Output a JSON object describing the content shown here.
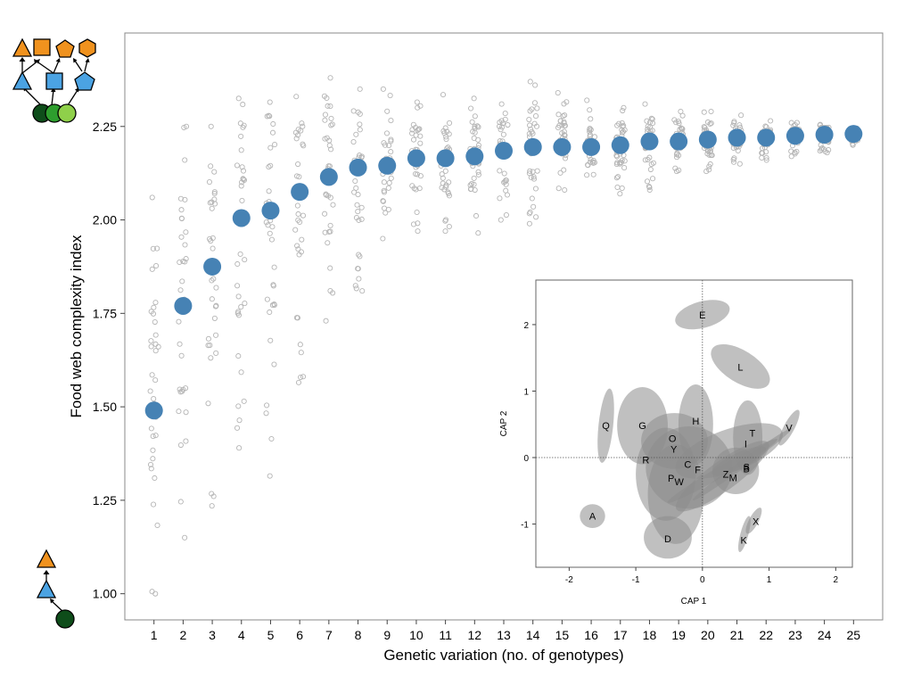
{
  "chart_data": [
    {
      "type": "scatter",
      "title": "",
      "xlabel": "Genetic variation (no. of genotypes)",
      "ylabel": "Food web complexity index",
      "xlim": [
        0,
        26
      ],
      "ylim": [
        0.93,
        2.5
      ],
      "x_ticks": [
        "1",
        "2",
        "3",
        "4",
        "5",
        "6",
        "7",
        "8",
        "9",
        "10",
        "11",
        "12",
        "13",
        "14",
        "15",
        "16",
        "17",
        "18",
        "19",
        "20",
        "21",
        "22",
        "23",
        "24",
        "25"
      ],
      "y_ticks": [
        "1.00",
        "1.25",
        "1.50",
        "1.75",
        "2.00",
        "2.25"
      ],
      "grid": false,
      "series": [
        {
          "x": [
            1,
            2,
            3,
            4,
            5,
            6,
            7,
            8,
            9,
            10,
            11,
            12,
            13,
            14,
            15,
            16,
            17,
            18,
            19,
            20,
            21,
            22,
            23,
            24,
            25
          ],
          "y": [
            1.49,
            1.77,
            1.875,
            2.005,
            2.025,
            2.075,
            2.115,
            2.14,
            2.145,
            2.165,
            2.165,
            2.17,
            2.185,
            2.195,
            2.195,
            2.195,
            2.2,
            2.21,
            2.21,
            2.215,
            2.22,
            2.22,
            2.225,
            2.228,
            2.23
          ],
          "color": "#4682b4"
        }
      ],
      "replicates": {
        "color": "#b5b5b5",
        "min": [
          1.0,
          1.15,
          1.235,
          1.39,
          1.315,
          1.565,
          1.73,
          1.81,
          1.95,
          1.97,
          1.97,
          1.965,
          2.0,
          1.99,
          2.08,
          2.12,
          2.07,
          2.08,
          2.13,
          2.13,
          2.15,
          2.16,
          2.17,
          2.18,
          2.2
        ],
        "max": [
          2.06,
          2.25,
          2.25,
          2.325,
          2.315,
          2.33,
          2.38,
          2.35,
          2.35,
          2.315,
          2.335,
          2.325,
          2.31,
          2.37,
          2.34,
          2.32,
          2.3,
          2.31,
          2.29,
          2.29,
          2.28,
          2.265,
          2.26,
          2.255,
          2.245
        ]
      }
    },
    {
      "type": "scatter",
      "title": "",
      "xlabel": "CAP 1",
      "ylabel": "CAP 2",
      "xlim": [
        -2.5,
        2.25
      ],
      "ylim": [
        -1.65,
        2.67
      ],
      "x_ticks": [
        "-2",
        "-1",
        "0",
        "1",
        "2"
      ],
      "y_ticks": [
        "-1",
        "0",
        "1",
        "2"
      ],
      "grid": false,
      "reference_lines": [
        0,
        0
      ],
      "ellipse_color": "#8c8c8c",
      "labels": [
        {
          "label": "E",
          "x": 0.0,
          "y": 2.15
        },
        {
          "label": "L",
          "x": 0.57,
          "y": 1.36
        },
        {
          "label": "Q",
          "x": -1.45,
          "y": 0.48
        },
        {
          "label": "G",
          "x": -0.9,
          "y": 0.48
        },
        {
          "label": "H",
          "x": -0.1,
          "y": 0.55
        },
        {
          "label": "V",
          "x": 1.3,
          "y": 0.45
        },
        {
          "label": "T",
          "x": 0.75,
          "y": 0.37
        },
        {
          "label": "O",
          "x": -0.45,
          "y": 0.29
        },
        {
          "label": "I",
          "x": 0.65,
          "y": 0.21
        },
        {
          "label": "Y",
          "x": -0.43,
          "y": 0.13
        },
        {
          "label": "R",
          "x": -0.85,
          "y": -0.03
        },
        {
          "label": "C",
          "x": -0.22,
          "y": -0.1
        },
        {
          "label": "F",
          "x": -0.07,
          "y": -0.18
        },
        {
          "label": "S",
          "x": 0.66,
          "y": -0.14
        },
        {
          "label": "B",
          "x": 0.66,
          "y": -0.17
        },
        {
          "label": "Z",
          "x": 0.35,
          "y": -0.25
        },
        {
          "label": "M",
          "x": 0.46,
          "y": -0.3
        },
        {
          "label": "P",
          "x": -0.47,
          "y": -0.31
        },
        {
          "label": "W",
          "x": -0.35,
          "y": -0.36
        },
        {
          "label": "A",
          "x": -1.65,
          "y": -0.88
        },
        {
          "label": "X",
          "x": 0.8,
          "y": -0.96
        },
        {
          "label": "D",
          "x": -0.52,
          "y": -1.22
        },
        {
          "label": "K",
          "x": 0.62,
          "y": -1.24
        }
      ],
      "ellipses": [
        {
          "cx": 0.0,
          "cy": 2.15,
          "rx": 0.42,
          "ry": 0.2,
          "angle": -15
        },
        {
          "cx": 0.57,
          "cy": 1.37,
          "rx": 0.5,
          "ry": 0.24,
          "angle": 32
        },
        {
          "cx": -1.45,
          "cy": 0.48,
          "rx": 0.56,
          "ry": 0.11,
          "angle": -84
        },
        {
          "cx": -0.9,
          "cy": 0.48,
          "rx": 0.38,
          "ry": 0.58,
          "angle": 0
        },
        {
          "cx": -0.1,
          "cy": 0.5,
          "rx": 0.26,
          "ry": 0.6,
          "angle": 0
        },
        {
          "cx": 1.3,
          "cy": 0.45,
          "rx": 0.3,
          "ry": 0.08,
          "angle": -62
        },
        {
          "cx": 0.68,
          "cy": 0.3,
          "rx": 0.22,
          "ry": 0.56,
          "angle": 0
        },
        {
          "cx": -0.42,
          "cy": 0.25,
          "rx": 0.5,
          "ry": 0.42,
          "angle": 0
        },
        {
          "cx": -0.2,
          "cy": -0.15,
          "rx": 0.65,
          "ry": 0.62,
          "angle": 0
        },
        {
          "cx": 0.4,
          "cy": 0.1,
          "rx": 0.85,
          "ry": 0.32,
          "angle": -20
        },
        {
          "cx": -0.55,
          "cy": -0.25,
          "rx": 0.45,
          "ry": 0.7,
          "angle": 0
        },
        {
          "cx": -0.4,
          "cy": -0.55,
          "rx": 0.42,
          "ry": 0.75,
          "angle": 0
        },
        {
          "cx": 0.5,
          "cy": -0.2,
          "rx": 0.35,
          "ry": 0.35,
          "angle": 0
        },
        {
          "cx": 0.6,
          "cy": -0.1,
          "rx": 0.92,
          "ry": 0.06,
          "angle": -36
        },
        {
          "cx": 0.3,
          "cy": -0.2,
          "rx": 0.95,
          "ry": 0.08,
          "angle": -30
        },
        {
          "cx": 0.3,
          "cy": -0.28,
          "rx": 0.85,
          "ry": 0.22,
          "angle": -36
        },
        {
          "cx": 0.55,
          "cy": -0.05,
          "rx": 0.45,
          "ry": 0.12,
          "angle": -25
        },
        {
          "cx": -1.65,
          "cy": -0.88,
          "rx": 0.19,
          "ry": 0.18,
          "angle": 0
        },
        {
          "cx": 0.77,
          "cy": -0.95,
          "rx": 0.22,
          "ry": 0.07,
          "angle": -62
        },
        {
          "cx": -0.52,
          "cy": -1.2,
          "rx": 0.36,
          "ry": 0.32,
          "angle": 0
        },
        {
          "cx": 0.63,
          "cy": -1.15,
          "rx": 0.28,
          "ry": 0.06,
          "angle": -75
        }
      ]
    }
  ],
  "legend_icons": {
    "colors": {
      "orange": "#f0921e",
      "blue": "#4ba3e3",
      "dark_green": "#0e4d1a",
      "green": "#2e9e2e",
      "light_green": "#8fd04a"
    },
    "complex_web": [
      "orange-triangle",
      "orange-square",
      "orange-pentagon",
      "orange-hexagon",
      "blue-triangle",
      "blue-square",
      "blue-pentagon",
      "dark-green-circle",
      "green-circle",
      "light-green-circle"
    ],
    "simple_chain": [
      "orange-triangle",
      "blue-triangle",
      "dark-green-circle"
    ]
  }
}
